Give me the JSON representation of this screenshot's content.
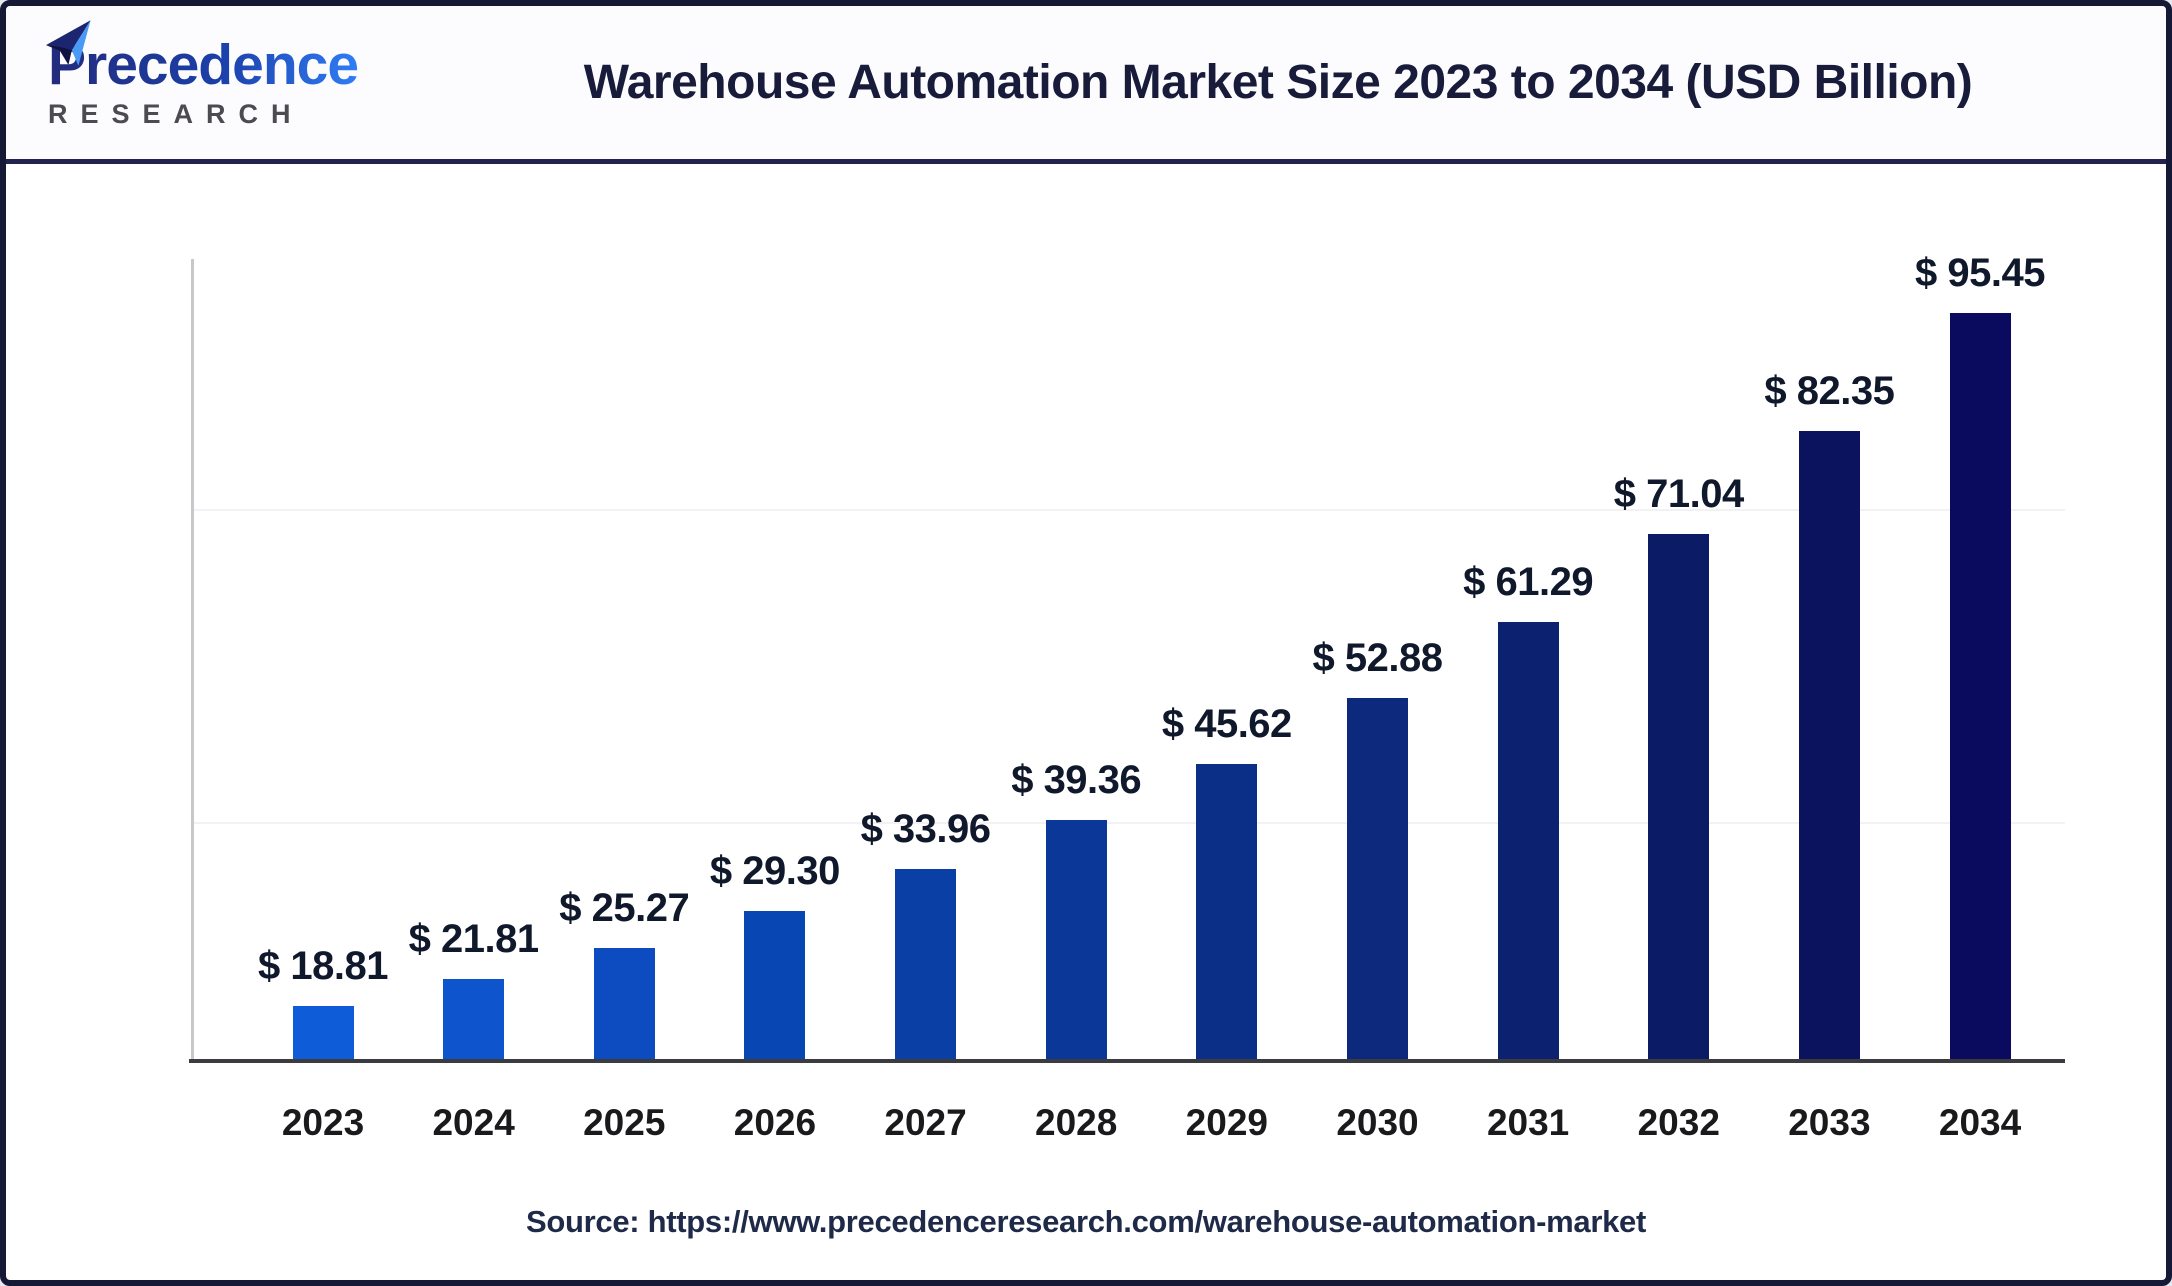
{
  "header": {
    "logo": {
      "brand": "Precedence",
      "sub": "RESEARCH"
    },
    "title": "Warehouse Automation Market Size 2023 to 2034 (USD Billion)"
  },
  "chart_data": {
    "type": "bar",
    "title": "Warehouse Automation Market Size 2023 to 2034 (USD Billion)",
    "unit": "USD Billion",
    "categories": [
      "2023",
      "2024",
      "2025",
      "2026",
      "2027",
      "2028",
      "2029",
      "2030",
      "2031",
      "2032",
      "2033",
      "2034"
    ],
    "values": [
      18.81,
      21.81,
      25.27,
      29.3,
      33.96,
      39.36,
      45.62,
      52.88,
      61.29,
      71.04,
      82.35,
      95.45
    ],
    "value_labels": [
      "$ 18.81",
      "$ 21.81",
      "$ 25.27",
      "$ 29.30",
      "$ 33.96",
      "$ 39.36",
      "$ 45.62",
      "$ 52.88",
      "$ 61.29",
      "$ 71.04",
      "$ 82.35",
      "$ 95.45"
    ],
    "bar_colors": [
      "#0F5CD9",
      "#0E54CC",
      "#0D4CC0",
      "#0846B4",
      "#0A3FA6",
      "#0B3799",
      "#0B2F87",
      "#0C297E",
      "#0C2271",
      "#0C1B66",
      "#0B125E",
      "#0A0A5E"
    ],
    "legend": "none",
    "grid": "faint-horizontal",
    "x_axis": {
      "label": "",
      "tick_labels_visible": true
    },
    "y_axis": {
      "label": "",
      "visible": true,
      "tick_labels_visible": false
    }
  },
  "footer": {
    "source": "Source: https://www.precedenceresearch.com/warehouse-automation-market"
  },
  "colors": {
    "frame_border": "#151936",
    "title_text": "#181C3A",
    "logo_gradient_start": "#232B7C",
    "logo_gradient_end": "#2F7DF6",
    "logo_sub_gray": "#4B4B50",
    "axis_line": "#C8C8CC",
    "baseline": "#3B3B40"
  }
}
